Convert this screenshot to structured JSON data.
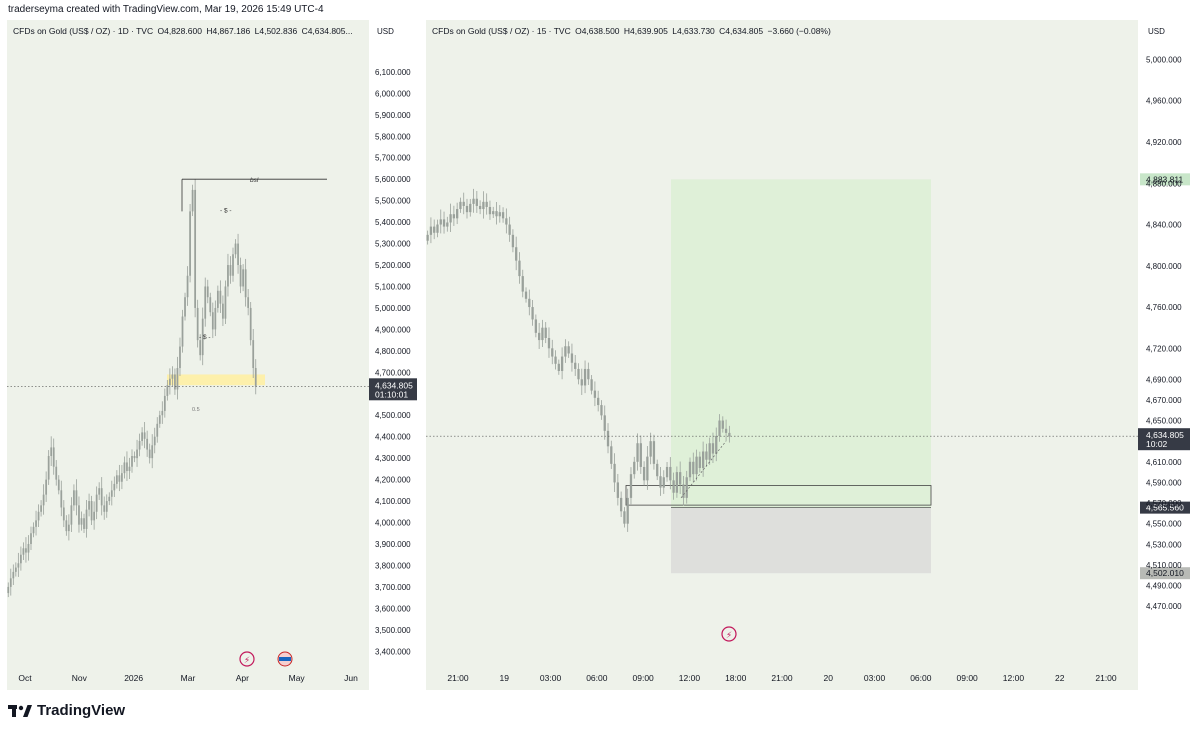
{
  "header": {
    "text": "traderseyma created with TradingView.com, Mar 19, 2026 15:49 UTC-4"
  },
  "footer": {
    "brand": "TradingView"
  },
  "colors": {
    "candle": "#9aa19b",
    "text": "#131722",
    "highlight": "#fff0a0",
    "target_zone": "#dff0d8",
    "stop_zone": "#dedfdc"
  },
  "chart_data": [
    {
      "type": "candlestick",
      "legend": {
        "symbol": "CFDs on Gold (US$ / OZ) · 1D · TVC",
        "o": "O4,828.600",
        "h": "H4,867.186",
        "l": "L4,502.836",
        "c": "C4,634.805..."
      },
      "unit": "USD",
      "ylim": [
        3350,
        6230
      ],
      "y_ticks": [
        "6,100.000",
        "6,000.000",
        "5,900.000",
        "5,800.000",
        "5,700.000",
        "5,600.000",
        "5,500.000",
        "5,400.000",
        "5,300.000",
        "5,200.000",
        "5,100.000",
        "5,000.000",
        "4,900.000",
        "4,800.000",
        "4,700.000",
        "4,600.000",
        "4,500.000",
        "4,400.000",
        "4,300.000",
        "4,200.000",
        "4,100.000",
        "4,000.000",
        "3,900.000",
        "3,800.000",
        "3,700.000",
        "3,600.000",
        "3,500.000",
        "3,400.000"
      ],
      "x_ticks": [
        "Oct",
        "Nov",
        "2026",
        "Mar",
        "Apr",
        "May",
        "Jun"
      ],
      "last_price": {
        "value": "4,634.805",
        "countdown": "01:10:01"
      },
      "annotations": {
        "bsl": "bsl",
        "s_high": "- $ -",
        "s_low": "- $ -",
        "fib": "0.5"
      },
      "closes": [
        3700,
        3740,
        3770,
        3790,
        3810,
        3850,
        3880,
        3860,
        3900,
        3950,
        3980,
        4010,
        4050,
        4080,
        4130,
        4200,
        4310,
        4350,
        4260,
        4200,
        4150,
        4070,
        4010,
        3960,
        3990,
        4080,
        4150,
        4080,
        3990,
        4020,
        3970,
        4060,
        4100,
        4010,
        4050,
        4130,
        4160,
        4080,
        4050,
        4100,
        4120,
        4150,
        4180,
        4220,
        4190,
        4230,
        4280,
        4240,
        4260,
        4310,
        4300,
        4340,
        4380,
        4420,
        4390,
        4340,
        4300,
        4360,
        4400,
        4460,
        4500,
        4520,
        4590,
        4640,
        4670,
        4690,
        4620,
        4720,
        4820,
        4960,
        5050,
        5150,
        5450,
        5550,
        5000,
        4850,
        4780,
        4950,
        5100,
        5050,
        4980,
        4900,
        5000,
        5080,
        5020,
        4950,
        5100,
        5200,
        5150,
        5250,
        5300,
        5200,
        5100,
        5180,
        5050,
        5000,
        4850,
        4720,
        4634.805
      ]
    },
    {
      "type": "candlestick",
      "legend": {
        "symbol": "CFDs on Gold (US$ / OZ) · 15 · TVC",
        "o": "O4,638.500",
        "h": "H4,639.905",
        "l": "L4,633.730",
        "c": "C4,634.805",
        "change": "−3.660 (−0.08%)"
      },
      "unit": "USD",
      "ylim": [
        4445,
        5015
      ],
      "y_ticks": [
        "5,000.000",
        "4,960.000",
        "4,920.000",
        "4,880.000",
        "4,840.000",
        "4,800.000",
        "4,760.000",
        "4,720.000",
        "4,690.000",
        "4,670.000",
        "4,650.000",
        "4,630.000",
        "4,610.000",
        "4,590.000",
        "4,570.000",
        "4,550.000",
        "4,530.000",
        "4,510.000",
        "4,490.000",
        "4,470.000"
      ],
      "x_ticks": [
        "21:00",
        "19",
        "03:00",
        "06:00",
        "09:00",
        "12:00",
        "18:00",
        "21:00",
        "20",
        "03:00",
        "06:00",
        "09:00",
        "12:00",
        "22",
        "21:00"
      ],
      "last_price": {
        "value": "4,634.805",
        "countdown": "10:02"
      },
      "price_labels": {
        "target": "4,883.811",
        "entry": "4,565.560",
        "stop": "4,502.010"
      },
      "position": {
        "target": 4883.811,
        "entry": 4565.56,
        "stop": 4502.01
      },
      "closes": [
        4830,
        4838,
        4832,
        4840,
        4845,
        4838,
        4842,
        4850,
        4846,
        4855,
        4862,
        4858,
        4852,
        4860,
        4865,
        4858,
        4855,
        4862,
        4857,
        4850,
        4853,
        4848,
        4852,
        4846,
        4840,
        4830,
        4818,
        4805,
        4790,
        4775,
        4768,
        4760,
        4748,
        4735,
        4728,
        4740,
        4730,
        4720,
        4712,
        4705,
        4698,
        4712,
        4722,
        4715,
        4706,
        4700,
        4690,
        4684,
        4700,
        4690,
        4679,
        4672,
        4665,
        4655,
        4640,
        4625,
        4608,
        4590,
        4575,
        4562,
        4550,
        4575,
        4598,
        4610,
        4628,
        4605,
        4592,
        4615,
        4630,
        4608,
        4596,
        4585,
        4595,
        4605,
        4592,
        4580,
        4600,
        4588,
        4575,
        4595,
        4610,
        4598,
        4615,
        4604,
        4620,
        4612,
        4628,
        4618,
        4635,
        4650,
        4642,
        4638,
        4634.805
      ]
    }
  ]
}
